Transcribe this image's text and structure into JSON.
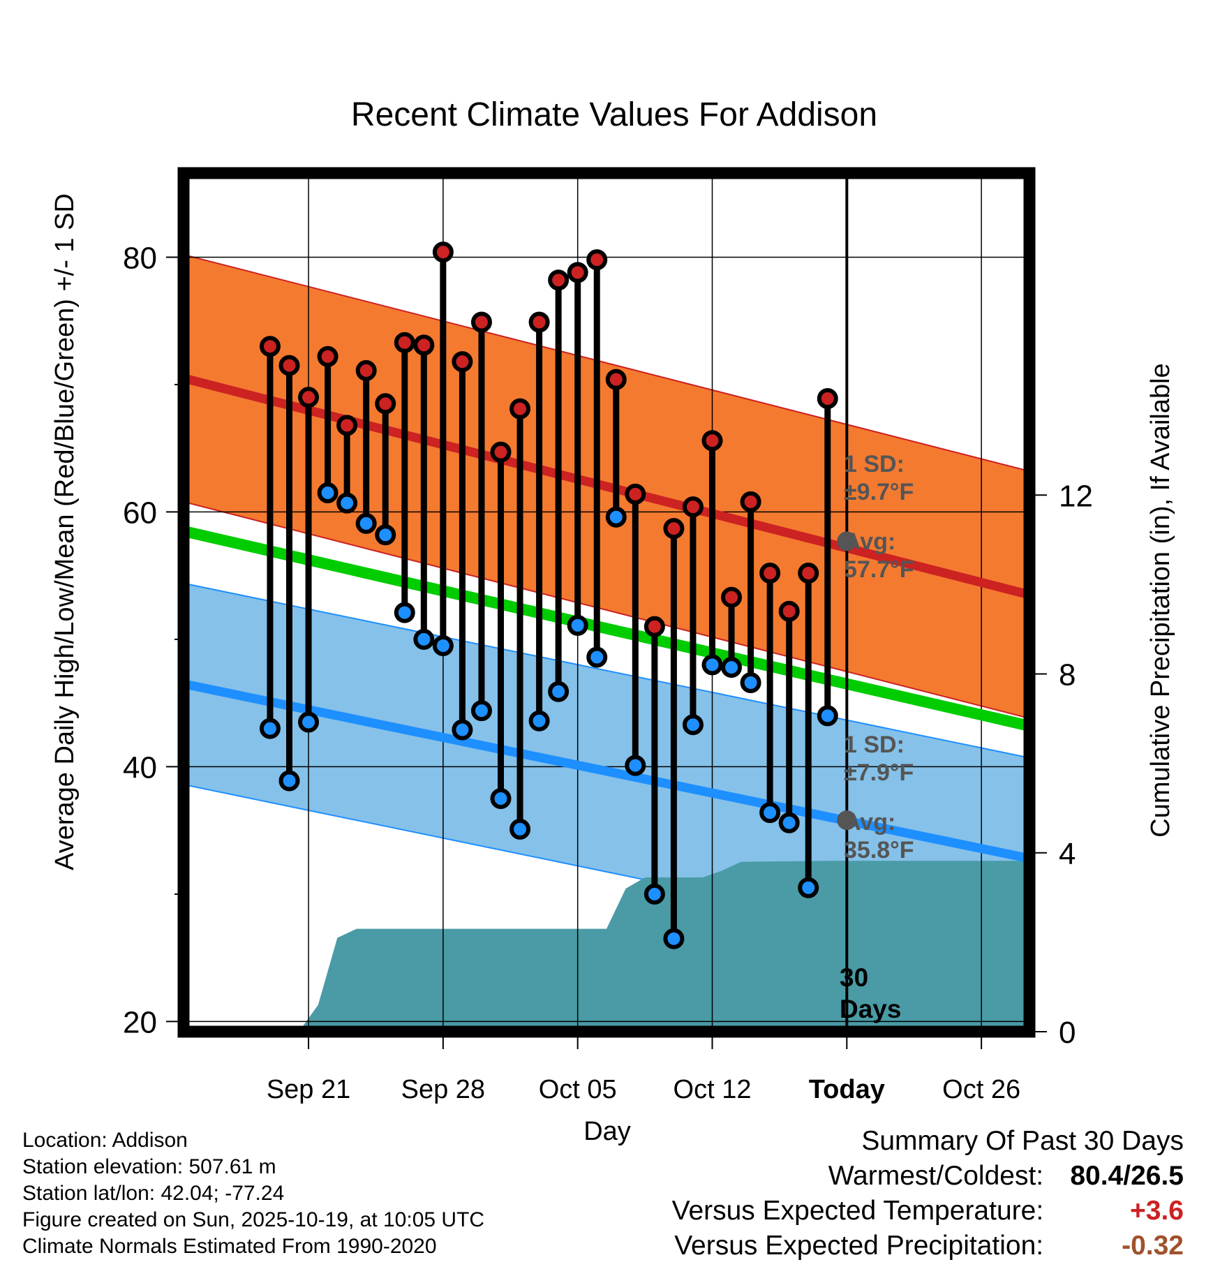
{
  "chart_data": {
    "type": "line",
    "title": "Recent Climate Values For Addison",
    "xlabel": "Day",
    "ylabel": "Average Daily High/Low/Mean (Red/Blue/Green) +/- 1 SD",
    "y2label": "Cumulative Precipitation (in), If Available",
    "xlim_days": [
      -34.5,
      9.5
    ],
    "ylim": [
      19.2,
      86.6
    ],
    "y2lim": [
      0,
      19.2
    ],
    "x_ticks": [
      {
        "day": -28,
        "label": "Sep 21"
      },
      {
        "day": -21,
        "label": "Sep 28"
      },
      {
        "day": -14,
        "label": "Oct 05"
      },
      {
        "day": -7,
        "label": "Oct 12"
      },
      {
        "day": 0,
        "label": "Today"
      },
      {
        "day": 7,
        "label": "Oct 26"
      }
    ],
    "y_ticks": [
      20,
      40,
      60,
      80
    ],
    "y2_ticks": [
      0,
      4,
      8,
      12
    ],
    "days": [
      -30,
      -29,
      -28,
      -27,
      -26,
      -25,
      -24,
      -23,
      -22,
      -21,
      -20,
      -19,
      -18,
      -17,
      -16,
      -15,
      -14,
      -13,
      -12,
      -11,
      -10,
      -9,
      -8,
      -7,
      -6,
      -5,
      -4,
      -3,
      -2,
      -1
    ],
    "highs": [
      73.0,
      71.5,
      69.0,
      72.2,
      66.8,
      71.1,
      68.5,
      73.3,
      73.1,
      80.4,
      71.8,
      74.9,
      64.7,
      68.1,
      74.9,
      78.2,
      78.8,
      79.8,
      70.4,
      61.4,
      51.0,
      58.7,
      60.4,
      65.6,
      53.3,
      60.8,
      55.2,
      52.2,
      55.2,
      68.9
    ],
    "lows": [
      43.0,
      38.9,
      43.5,
      61.5,
      60.7,
      59.1,
      58.2,
      52.1,
      50.0,
      49.5,
      42.9,
      44.4,
      37.5,
      35.1,
      43.6,
      45.9,
      51.1,
      48.6,
      59.6,
      40.1,
      30.0,
      26.5,
      43.3,
      48.0,
      47.8,
      46.6,
      36.4,
      35.6,
      30.5,
      44.0
    ],
    "normal_high": {
      "start": 70.5,
      "end": 53.5,
      "sd": 9.7,
      "today_avg": 57.7
    },
    "normal_low": {
      "start": 46.5,
      "end": 32.8,
      "sd": 7.9,
      "today_avg": 35.8
    },
    "normal_mean": {
      "start": 58.5,
      "end": 43.2
    },
    "precip_cumulative": [
      {
        "day": -28.5,
        "value": 0.0
      },
      {
        "day": -27.5,
        "value": 0.6
      },
      {
        "day": -26.5,
        "value": 2.1
      },
      {
        "day": -25.5,
        "value": 2.3
      },
      {
        "day": -15,
        "value": 2.3
      },
      {
        "day": -14,
        "value": 2.3
      },
      {
        "day": -12.5,
        "value": 2.3
      },
      {
        "day": -11.5,
        "value": 3.2
      },
      {
        "day": -10.5,
        "value": 3.45
      },
      {
        "day": -7.5,
        "value": 3.45
      },
      {
        "day": -6.5,
        "value": 3.6
      },
      {
        "day": -5.5,
        "value": 3.8
      },
      {
        "day": -1,
        "value": 3.82
      },
      {
        "day": 9.5,
        "value": 3.82
      }
    ],
    "annotations": {
      "high_sd_label": "1 SD:",
      "high_sd_value": "±9.7°F",
      "high_avg_label": "Avg:",
      "high_avg_value": "57.7°F",
      "low_sd_label": "1 SD:",
      "low_sd_value": "±7.9°F",
      "low_avg_label": "Avg:",
      "low_avg_value": "35.8°F",
      "window_label_1": "30",
      "window_label_2": "Days"
    },
    "colors": {
      "high_band": "#f47a30",
      "high_line": "#cc2222",
      "low_band": "#85c1e9",
      "low_line": "#1e8fff",
      "mean_line": "#00cc00",
      "precip": "#4a9ba6",
      "high_dot": "#cc2222",
      "low_dot": "#1e8fff",
      "annotation": "#555555"
    }
  },
  "footer": {
    "location": "Location: Addison",
    "elevation": "Station elevation: 507.61 m",
    "latlon": "Station lat/lon: 42.04; -77.24",
    "created": "Figure created on Sun, 2025-10-19, at 10:05 UTC",
    "normals": "Climate Normals Estimated From 1990-2020"
  },
  "summary": {
    "title": "Summary Of Past 30 Days",
    "warm_cold_label": "Warmest/Coldest:",
    "warm_cold_value": "80.4/26.5",
    "temp_label": "Versus Expected Temperature:",
    "temp_value": "+3.6",
    "temp_color": "#cc2222",
    "precip_label": "Versus Expected Precipitation:",
    "precip_value": "-0.32",
    "precip_color": "#a0522d"
  }
}
